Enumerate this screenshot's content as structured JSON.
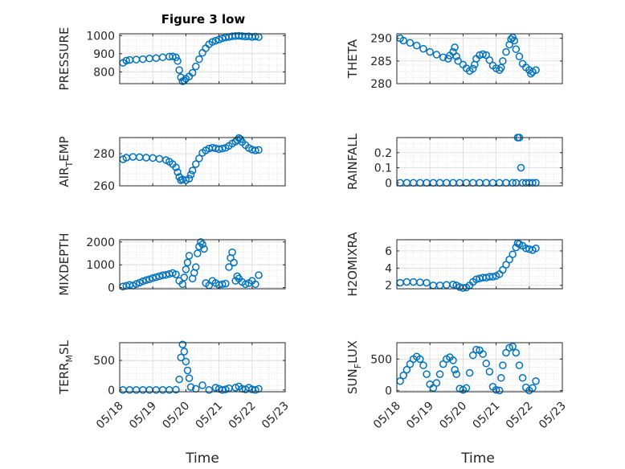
{
  "figure": {
    "title": "Figure 3 low",
    "xlabel": "Time",
    "xtick_labels": [
      "05/18",
      "05/19",
      "05/20",
      "05/21",
      "05/22",
      "05/23"
    ],
    "marker_color": "#0072bd",
    "grid": "on"
  },
  "chart_data": [
    {
      "type": "scatter",
      "ylabel": "PRESSURE",
      "ylim": [
        735,
        1010
      ],
      "yticks": [
        "800",
        "900",
        "1000"
      ],
      "points": [
        [
          0.1,
          850
        ],
        [
          0.2,
          862
        ],
        [
          0.3,
          866
        ],
        [
          0.5,
          868
        ],
        [
          0.7,
          870
        ],
        [
          0.9,
          874
        ],
        [
          1.1,
          876
        ],
        [
          1.3,
          880
        ],
        [
          1.5,
          884
        ],
        [
          1.6,
          885
        ],
        [
          1.7,
          880
        ],
        [
          1.75,
          860
        ],
        [
          1.8,
          810
        ],
        [
          1.85,
          770
        ],
        [
          1.9,
          748
        ],
        [
          1.95,
          752
        ],
        [
          2.0,
          762
        ],
        [
          2.1,
          775
        ],
        [
          2.2,
          795
        ],
        [
          2.3,
          830
        ],
        [
          2.4,
          870
        ],
        [
          2.5,
          905
        ],
        [
          2.6,
          930
        ],
        [
          2.7,
          952
        ],
        [
          2.8,
          965
        ],
        [
          2.9,
          972
        ],
        [
          3.0,
          978
        ],
        [
          3.1,
          985
        ],
        [
          3.2,
          990
        ],
        [
          3.3,
          993
        ],
        [
          3.4,
          996
        ],
        [
          3.5,
          998
        ],
        [
          3.6,
          999
        ],
        [
          3.7,
          997
        ],
        [
          3.8,
          995
        ],
        [
          3.9,
          996
        ],
        [
          4.0,
          993
        ],
        [
          4.1,
          995
        ],
        [
          4.2,
          992
        ]
      ]
    },
    {
      "type": "scatter",
      "ylabel": "THETA",
      "ylim": [
        280,
        291
      ],
      "yticks": [
        "280",
        "285",
        "290"
      ],
      "points": [
        [
          0.1,
          290
        ],
        [
          0.2,
          289.5
        ],
        [
          0.4,
          289
        ],
        [
          0.6,
          288.4
        ],
        [
          0.8,
          287.7
        ],
        [
          1.0,
          287
        ],
        [
          1.2,
          286.4
        ],
        [
          1.4,
          285.8
        ],
        [
          1.55,
          285.5
        ],
        [
          1.6,
          286.2
        ],
        [
          1.7,
          287
        ],
        [
          1.75,
          288
        ],
        [
          1.8,
          286
        ],
        [
          1.85,
          285
        ],
        [
          2.0,
          284.2
        ],
        [
          2.1,
          283.4
        ],
        [
          2.2,
          282.8
        ],
        [
          2.3,
          283.3
        ],
        [
          2.35,
          284.2
        ],
        [
          2.4,
          285.5
        ],
        [
          2.5,
          286.3
        ],
        [
          2.6,
          286.5
        ],
        [
          2.7,
          286.3
        ],
        [
          2.8,
          285.2
        ],
        [
          2.9,
          284
        ],
        [
          3.0,
          283.4
        ],
        [
          3.1,
          283
        ],
        [
          3.15,
          283.5
        ],
        [
          3.2,
          285
        ],
        [
          3.3,
          287
        ],
        [
          3.4,
          288.6
        ],
        [
          3.45,
          289.8
        ],
        [
          3.5,
          290.2
        ],
        [
          3.55,
          289.5
        ],
        [
          3.6,
          287.6
        ],
        [
          3.7,
          286
        ],
        [
          3.8,
          284.4
        ],
        [
          3.9,
          283.6
        ],
        [
          4.0,
          283
        ],
        [
          4.05,
          282.2
        ],
        [
          4.1,
          282.6
        ],
        [
          4.2,
          283
        ]
      ]
    },
    {
      "type": "scatter",
      "ylabel": "AIR_TEMP",
      "ylim": [
        260,
        290
      ],
      "yticks": [
        "260",
        "280"
      ],
      "points": [
        [
          0.1,
          276.5
        ],
        [
          0.2,
          277.5
        ],
        [
          0.4,
          278
        ],
        [
          0.6,
          277.8
        ],
        [
          0.8,
          277.5
        ],
        [
          1.0,
          277.3
        ],
        [
          1.2,
          276.8
        ],
        [
          1.4,
          276
        ],
        [
          1.5,
          275
        ],
        [
          1.6,
          273.5
        ],
        [
          1.7,
          271.5
        ],
        [
          1.75,
          268.5
        ],
        [
          1.8,
          265.5
        ],
        [
          1.85,
          263.5
        ],
        [
          1.9,
          264
        ],
        [
          2.0,
          263.5
        ],
        [
          2.1,
          264.5
        ],
        [
          2.15,
          267
        ],
        [
          2.2,
          269.5
        ],
        [
          2.3,
          273.5
        ],
        [
          2.4,
          277
        ],
        [
          2.5,
          280.5
        ],
        [
          2.6,
          282
        ],
        [
          2.7,
          283.2
        ],
        [
          2.8,
          283.7
        ],
        [
          2.9,
          283.3
        ],
        [
          3.0,
          282.8
        ],
        [
          3.1,
          283.2
        ],
        [
          3.2,
          283.6
        ],
        [
          3.3,
          284.8
        ],
        [
          3.4,
          286.3
        ],
        [
          3.5,
          287.5
        ],
        [
          3.55,
          288.5
        ],
        [
          3.6,
          289.7
        ],
        [
          3.65,
          289
        ],
        [
          3.7,
          287.2
        ],
        [
          3.8,
          285.3
        ],
        [
          3.9,
          283.5
        ],
        [
          4.0,
          282.5
        ],
        [
          4.1,
          282
        ],
        [
          4.2,
          282.3
        ]
      ]
    },
    {
      "type": "scatter",
      "ylabel": "RAINFALL",
      "ylim": [
        -0.02,
        0.3
      ],
      "yticks": [
        "0",
        "0.1",
        "0.2"
      ],
      "points": [
        [
          0.1,
          0
        ],
        [
          0.3,
          0
        ],
        [
          0.5,
          0
        ],
        [
          0.7,
          0
        ],
        [
          0.9,
          0
        ],
        [
          1.1,
          0
        ],
        [
          1.3,
          0
        ],
        [
          1.5,
          0
        ],
        [
          1.7,
          0
        ],
        [
          1.9,
          0
        ],
        [
          2.1,
          0
        ],
        [
          2.3,
          0
        ],
        [
          2.5,
          0
        ],
        [
          2.7,
          0
        ],
        [
          2.9,
          0
        ],
        [
          3.1,
          0
        ],
        [
          3.3,
          0
        ],
        [
          3.5,
          0
        ],
        [
          3.6,
          0
        ],
        [
          3.65,
          0.3
        ],
        [
          3.7,
          0.3
        ],
        [
          3.75,
          0.1
        ],
        [
          3.8,
          0
        ],
        [
          3.9,
          0
        ],
        [
          4.0,
          0
        ],
        [
          4.1,
          0
        ],
        [
          4.2,
          0
        ]
      ]
    },
    {
      "type": "scatter",
      "ylabel": "MIXDEPTH",
      "ylim": [
        -50,
        2100
      ],
      "yticks": [
        "0",
        "1000",
        "2000"
      ],
      "points": [
        [
          0.1,
          50
        ],
        [
          0.2,
          80
        ],
        [
          0.3,
          120
        ],
        [
          0.4,
          90
        ],
        [
          0.5,
          160
        ],
        [
          0.6,
          220
        ],
        [
          0.7,
          280
        ],
        [
          0.8,
          330
        ],
        [
          0.9,
          370
        ],
        [
          1.0,
          420
        ],
        [
          1.1,
          460
        ],
        [
          1.2,
          500
        ],
        [
          1.3,
          540
        ],
        [
          1.4,
          560
        ],
        [
          1.5,
          600
        ],
        [
          1.6,
          640
        ],
        [
          1.7,
          580
        ],
        [
          1.8,
          300
        ],
        [
          1.9,
          150
        ],
        [
          1.95,
          450
        ],
        [
          2.0,
          800
        ],
        [
          2.05,
          1100
        ],
        [
          2.1,
          1400
        ],
        [
          2.2,
          400
        ],
        [
          2.25,
          650
        ],
        [
          2.3,
          900
        ],
        [
          2.35,
          1500
        ],
        [
          2.4,
          1800
        ],
        [
          2.45,
          2000
        ],
        [
          2.5,
          1900
        ],
        [
          2.55,
          1700
        ],
        [
          2.6,
          200
        ],
        [
          2.7,
          100
        ],
        [
          2.8,
          300
        ],
        [
          2.9,
          200
        ],
        [
          3.0,
          120
        ],
        [
          3.1,
          150
        ],
        [
          3.2,
          180
        ],
        [
          3.3,
          900
        ],
        [
          3.35,
          1300
        ],
        [
          3.4,
          1550
        ],
        [
          3.45,
          1100
        ],
        [
          3.5,
          300
        ],
        [
          3.55,
          500
        ],
        [
          3.6,
          400
        ],
        [
          3.7,
          250
        ],
        [
          3.8,
          150
        ],
        [
          3.9,
          200
        ],
        [
          4.0,
          300
        ],
        [
          4.1,
          150
        ],
        [
          4.2,
          550
        ]
      ]
    },
    {
      "type": "scatter",
      "ylabel": "H2OMIXRA",
      "ylim": [
        1.6,
        7.3
      ],
      "yticks": [
        "2",
        "4",
        "6"
      ],
      "points": [
        [
          0.1,
          2.3
        ],
        [
          0.3,
          2.4
        ],
        [
          0.5,
          2.4
        ],
        [
          0.7,
          2.35
        ],
        [
          0.9,
          2.3
        ],
        [
          1.1,
          2.0
        ],
        [
          1.3,
          2.0
        ],
        [
          1.5,
          2.05
        ],
        [
          1.7,
          2.1
        ],
        [
          1.8,
          2.0
        ],
        [
          1.9,
          1.8
        ],
        [
          2.0,
          1.7
        ],
        [
          2.1,
          1.75
        ],
        [
          2.2,
          2.0
        ],
        [
          2.3,
          2.4
        ],
        [
          2.4,
          2.7
        ],
        [
          2.5,
          2.8
        ],
        [
          2.6,
          2.9
        ],
        [
          2.7,
          2.9
        ],
        [
          2.8,
          3.0
        ],
        [
          2.9,
          3.0
        ],
        [
          3.0,
          3.1
        ],
        [
          3.1,
          3.3
        ],
        [
          3.2,
          3.8
        ],
        [
          3.3,
          4.4
        ],
        [
          3.4,
          5.0
        ],
        [
          3.5,
          5.6
        ],
        [
          3.6,
          6.4
        ],
        [
          3.65,
          6.9
        ],
        [
          3.7,
          6.8
        ],
        [
          3.8,
          6.6
        ],
        [
          3.9,
          6.3
        ],
        [
          4.0,
          6.2
        ],
        [
          4.1,
          6.1
        ],
        [
          4.2,
          6.3
        ]
      ]
    },
    {
      "type": "scatter",
      "ylabel": "TERR_MSL",
      "ylim": [
        -30,
        800
      ],
      "yticks": [
        "0",
        "500"
      ],
      "points": [
        [
          0.1,
          0
        ],
        [
          0.3,
          0
        ],
        [
          0.5,
          0
        ],
        [
          0.7,
          0
        ],
        [
          0.9,
          0
        ],
        [
          1.1,
          0
        ],
        [
          1.3,
          0
        ],
        [
          1.5,
          0
        ],
        [
          1.7,
          5
        ],
        [
          1.8,
          180
        ],
        [
          1.85,
          550
        ],
        [
          1.9,
          770
        ],
        [
          1.95,
          650
        ],
        [
          2.0,
          480
        ],
        [
          2.05,
          330
        ],
        [
          2.1,
          200
        ],
        [
          2.15,
          50
        ],
        [
          2.3,
          20
        ],
        [
          2.5,
          80
        ],
        [
          2.7,
          0
        ],
        [
          2.9,
          40
        ],
        [
          3.0,
          20
        ],
        [
          3.1,
          0
        ],
        [
          3.2,
          10
        ],
        [
          3.3,
          30
        ],
        [
          3.5,
          40
        ],
        [
          3.6,
          60
        ],
        [
          3.7,
          20
        ],
        [
          3.8,
          10
        ],
        [
          3.9,
          40
        ],
        [
          4.0,
          10
        ],
        [
          4.1,
          0
        ],
        [
          4.2,
          20
        ]
      ]
    },
    {
      "type": "scatter",
      "ylabel": "SUN_FLUX",
      "ylim": [
        -20,
        760
      ],
      "yticks": [
        "0",
        "500"
      ],
      "points": [
        [
          0.1,
          150
        ],
        [
          0.2,
          240
        ],
        [
          0.3,
          330
        ],
        [
          0.4,
          420
        ],
        [
          0.5,
          500
        ],
        [
          0.6,
          540
        ],
        [
          0.7,
          500
        ],
        [
          0.8,
          400
        ],
        [
          0.9,
          260
        ],
        [
          1.0,
          100
        ],
        [
          1.1,
          40
        ],
        [
          1.2,
          120
        ],
        [
          1.3,
          260
        ],
        [
          1.4,
          420
        ],
        [
          1.5,
          500
        ],
        [
          1.6,
          530
        ],
        [
          1.7,
          480
        ],
        [
          1.75,
          330
        ],
        [
          1.8,
          260
        ],
        [
          1.9,
          30
        ],
        [
          2.0,
          10
        ],
        [
          2.1,
          40
        ],
        [
          2.2,
          280
        ],
        [
          2.3,
          560
        ],
        [
          2.4,
          650
        ],
        [
          2.5,
          640
        ],
        [
          2.6,
          580
        ],
        [
          2.7,
          430
        ],
        [
          2.8,
          300
        ],
        [
          2.9,
          60
        ],
        [
          3.0,
          10
        ],
        [
          3.1,
          0
        ],
        [
          3.15,
          200
        ],
        [
          3.2,
          400
        ],
        [
          3.3,
          600
        ],
        [
          3.4,
          680
        ],
        [
          3.5,
          700
        ],
        [
          3.6,
          600
        ],
        [
          3.7,
          400
        ],
        [
          3.8,
          200
        ],
        [
          3.9,
          50
        ],
        [
          4.0,
          0
        ],
        [
          4.1,
          40
        ],
        [
          4.2,
          150
        ]
      ]
    }
  ]
}
